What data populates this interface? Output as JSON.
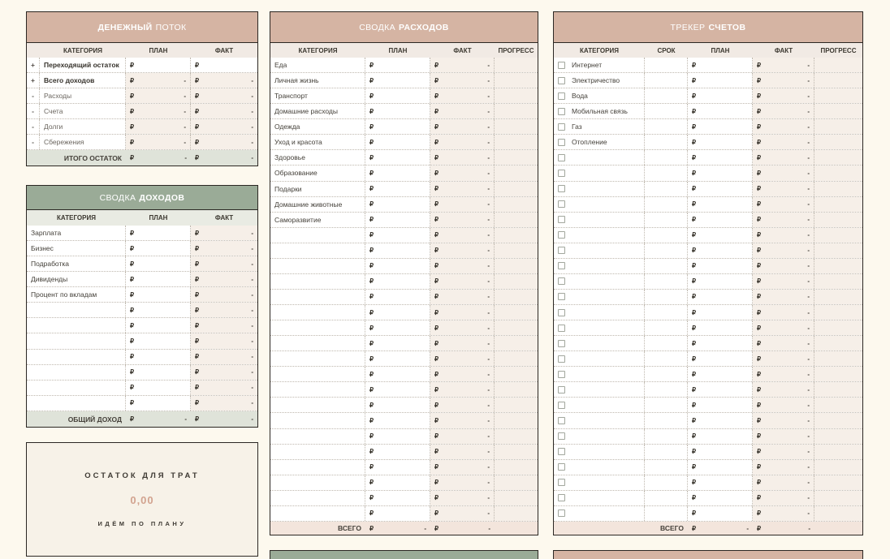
{
  "symbols": {
    "ruble": "₽",
    "dash": "-"
  },
  "colors": {
    "page_bg": "#fdf9ee",
    "accent_pink": "#d5b4a3",
    "accent_green": "#9aab97",
    "footer_green": "#dfe3d9",
    "footer_pink": "#f3e5dc",
    "computed_cell": "#f6efe8",
    "amount_text": "#d2a38f",
    "panel_border": "#2b2723"
  },
  "cash_flow": {
    "title_bold": "ДЕНЕЖНЫЙ",
    "title_regular": "ПОТОК",
    "columns": [
      "КАТЕГОРИЯ",
      "ПЛАН",
      "ФАКТ"
    ],
    "rows": [
      {
        "sign": "+",
        "label": "Переходящий остаток",
        "strong": true,
        "editable": true
      },
      {
        "sign": "+",
        "label": "Всего доходов",
        "strong": true,
        "editable": false
      },
      {
        "sign": "-",
        "label": "Расходы",
        "strong": false,
        "editable": false
      },
      {
        "sign": "-",
        "label": "Счета",
        "strong": false,
        "editable": false
      },
      {
        "sign": "-",
        "label": "Долги",
        "strong": false,
        "editable": false
      },
      {
        "sign": "-",
        "label": "Сбережения",
        "strong": false,
        "editable": false
      }
    ],
    "footer_label": "ИТОГО ОСТАТОК"
  },
  "income": {
    "title_regular": "СВОДКА",
    "title_bold": "ДОХОДОВ",
    "columns": [
      "КАТЕГОРИЯ",
      "ПЛАН",
      "ФАКТ"
    ],
    "row_count": 12,
    "categories": [
      "Зарплата",
      "Бизнес",
      "Подработка",
      "Дивиденды",
      "Процент по вкладам"
    ],
    "footer_label": "ОБЩИЙ ДОХОД"
  },
  "leftover": {
    "title": "ОСТАТОК ДЛЯ ТРАТ",
    "amount": "0,00",
    "status": "ИДЁМ ПО ПЛАНУ"
  },
  "expenses": {
    "title_regular": "СВОДКА",
    "title_bold": "РАСХОДОВ",
    "columns": [
      "КАТЕГОРИЯ",
      "ПЛАН",
      "ФАКТ",
      "ПРОГРЕСС"
    ],
    "row_count": 30,
    "categories": [
      "Еда",
      "Личная жизнь",
      "Транспорт",
      "Домашние расходы",
      "Одежда",
      "Уход и красота",
      "Здоровье",
      "Образование",
      "Подарки",
      "Домашние животные",
      "Саморазвитие"
    ],
    "footer_label": "ВСЕГО"
  },
  "bills": {
    "title_regular": "ТРЕКЕР",
    "title_bold": "СЧЕТОВ",
    "columns": [
      "КАТЕГОРИЯ",
      "СРОК",
      "ПЛАН",
      "ФАКТ",
      "ПРОГРЕСС"
    ],
    "row_count": 30,
    "categories": [
      "Интернет",
      "Электричество",
      "Вода",
      "Мобильная связь",
      "Газ",
      "Отопление"
    ],
    "footer_label": "ВСЕГО"
  }
}
